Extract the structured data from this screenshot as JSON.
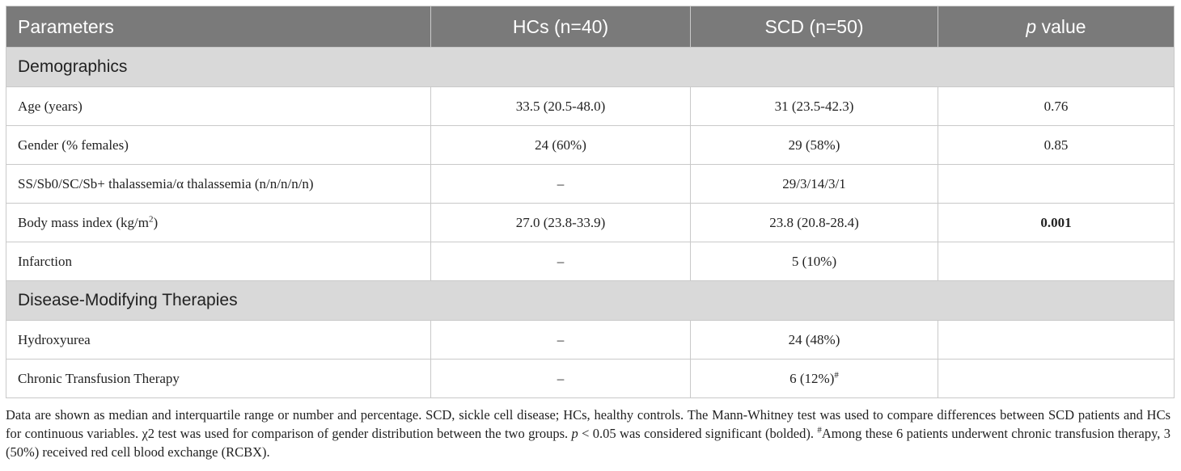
{
  "header": {
    "col_parameters": "Parameters",
    "col_hcs": "HCs (n=40)",
    "col_scd": "SCD (n=50)",
    "col_p_italic": "p",
    "col_p_rest": " value"
  },
  "sections": [
    {
      "title": "Demographics",
      "rows": [
        {
          "label": "Age (years)",
          "hcs": "33.5 (20.5-48.0)",
          "scd": "31 (23.5-42.3)",
          "p": "0.76"
        },
        {
          "label": "Gender (% females)",
          "hcs": "24 (60%)",
          "scd": "29 (58%)",
          "p": "0.85"
        },
        {
          "label": "SS/Sb0/SC/Sb+ thalassemia/α thalassemia (n/n/n/n/n)",
          "hcs": "–",
          "scd": "29/3/14/3/1",
          "p": ""
        },
        {
          "label_main": "Body mass index (kg/m",
          "label_sup": "2",
          "label_end": ")",
          "hcs": "27.0 (23.8-33.9)",
          "scd": "23.8 (20.8-28.4)",
          "p": "0.001"
        },
        {
          "label": "Infarction",
          "hcs": "–",
          "scd": "5 (10%)",
          "p": ""
        }
      ]
    },
    {
      "title": "Disease-Modifying Therapies",
      "rows": [
        {
          "label": "Hydroxyurea",
          "hcs": "–",
          "scd": "24 (48%)",
          "p": ""
        },
        {
          "label": "Chronic Transfusion Therapy",
          "hcs": "–",
          "scd_main": "6 (12%)",
          "scd_sup": "#",
          "p": ""
        }
      ]
    }
  ],
  "footnote": {
    "part1": "Data are shown as median and interquartile range or number and percentage. SCD, sickle cell disease; HCs, healthy controls. The Mann-Whitney test was used to compare differences between SCD patients and HCs for continuous variables. χ2 test was used for comparison of gender distribution between the two groups. ",
    "p_italic": "p",
    "part2": " < 0.05 was considered significant (bolded). ",
    "hash_sup": "#",
    "part3": "Among these 6 patients underwent chronic transfusion therapy, 3 (50%) received red cell blood exchange (RCBX)."
  }
}
